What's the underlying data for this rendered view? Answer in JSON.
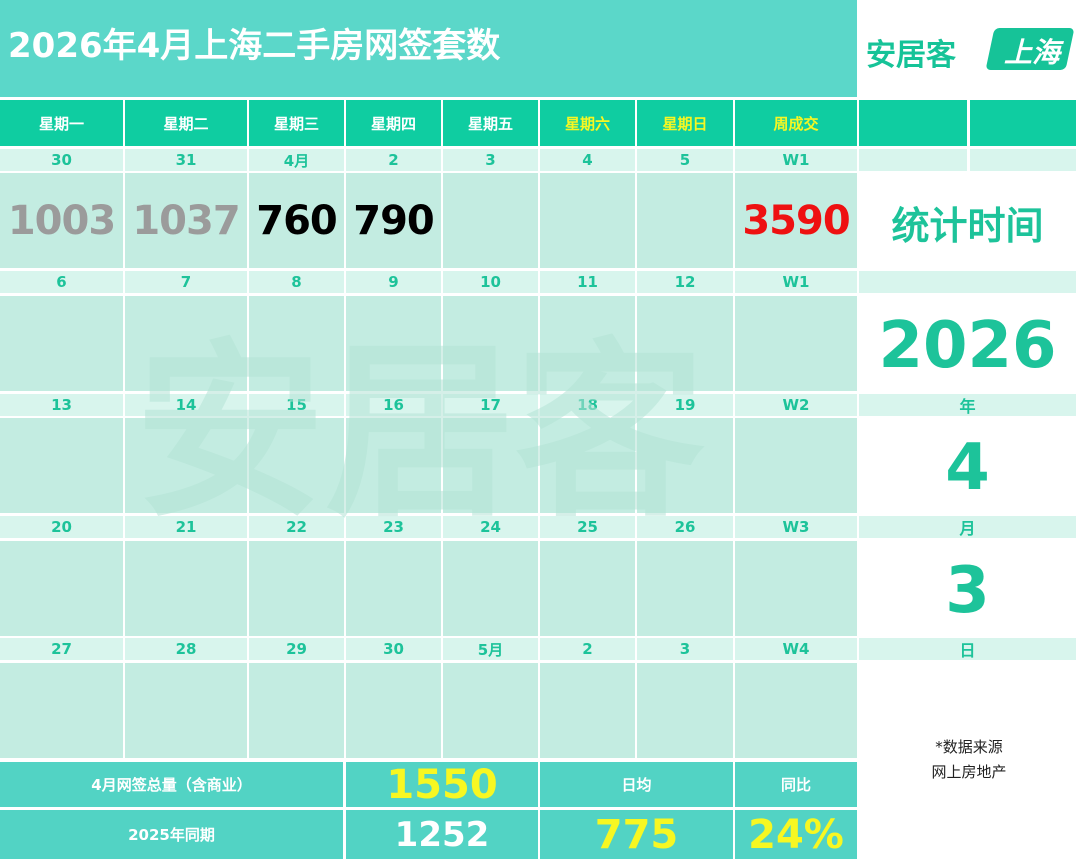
{
  "title": "2026年4月上海二手房网签套数",
  "logo": {
    "name": "安居客",
    "city": "上海"
  },
  "colors": {
    "accent": "#0fcda1",
    "title_bg": "#5bd7c9",
    "cell": "#c3ece1",
    "weekend_header": "#f7f722",
    "highlight_red": "#ee1111",
    "grey_value": "#9b9b9b"
  },
  "calendar": {
    "headers": [
      "星期一",
      "星期二",
      "星期三",
      "星期四",
      "星期五",
      "星期六",
      "星期日",
      "周成交"
    ],
    "weeks": [
      {
        "days": [
          "30",
          "31",
          "4月",
          "2",
          "3",
          "4",
          "5"
        ],
        "week_label": "W1",
        "values": [
          "1003",
          "1037",
          "760",
          "790",
          "",
          "",
          ""
        ],
        "week_total": "3590"
      },
      {
        "days": [
          "6",
          "7",
          "8",
          "9",
          "10",
          "11",
          "12"
        ],
        "week_label": "W1",
        "values": [
          "",
          "",
          "",
          "",
          "",
          "",
          ""
        ],
        "week_total": ""
      },
      {
        "days": [
          "13",
          "14",
          "15",
          "16",
          "17",
          "18",
          "19"
        ],
        "week_label": "W2",
        "values": [
          "",
          "",
          "",
          "",
          "",
          "",
          ""
        ],
        "week_total": ""
      },
      {
        "days": [
          "20",
          "21",
          "22",
          "23",
          "24",
          "25",
          "26"
        ],
        "week_label": "W3",
        "values": [
          "",
          "",
          "",
          "",
          "",
          "",
          ""
        ],
        "week_total": ""
      },
      {
        "days": [
          "27",
          "28",
          "29",
          "30",
          "5月",
          "2",
          "3"
        ],
        "week_label": "W4",
        "values": [
          "",
          "",
          "",
          "",
          "",
          "",
          ""
        ],
        "week_total": ""
      }
    ]
  },
  "stat_time": {
    "label": "统计时间",
    "year": "2026",
    "year_unit": "年",
    "month": "4",
    "month_unit": "月",
    "day": "3",
    "day_unit": "日"
  },
  "summary": {
    "total_label": "4月网签总量（含商业）",
    "total_value": "1550",
    "avg_label": "日均",
    "yoy_label": "同比",
    "prev_label": "2025年同期",
    "prev_value": "1252",
    "avg_value": "775",
    "yoy_value": "24%"
  },
  "source": {
    "line1": "*数据来源",
    "line2": "网上房地产"
  },
  "watermark": "安居客"
}
